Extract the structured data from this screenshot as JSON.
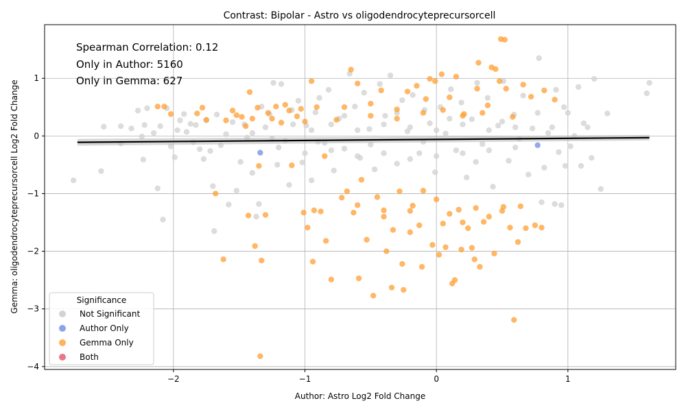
{
  "chart_data": {
    "type": "scatter",
    "title": "Contrast: Bipolar - Astro vs oligodendrocyteprecursorcell",
    "xlabel": "Author: Astro Log2 Fold Change",
    "ylabel": "Gemma: oligodendrocyteprecursorcell Log2 Fold Change",
    "xlim": [
      -2.98,
      1.82
    ],
    "ylim": [
      -4.05,
      1.93
    ],
    "x_ticks": [
      -2,
      -1,
      0,
      1
    ],
    "x_tick_labels": [
      "−2",
      "−1",
      "0",
      "1"
    ],
    "y_ticks": [
      -4,
      -3,
      -2,
      -1,
      0,
      1
    ],
    "y_tick_labels": [
      "−4",
      "−3",
      "−2",
      "−1",
      "0",
      "1"
    ],
    "grid": true,
    "annotations": [
      "Spearman Correlation: 0.12",
      "Only in Author: 5160",
      "Only in Gemma: 627"
    ],
    "legend": {
      "title": "Significance",
      "placement": "lower-left",
      "entries": [
        {
          "label": "Not Significant",
          "color": "#d3d3d3"
        },
        {
          "label": "Author Only",
          "color": "#6b8de3"
        },
        {
          "label": "Gemma Only",
          "color": "#ff9f33"
        },
        {
          "label": "Both",
          "color": "#e0566a"
        }
      ]
    },
    "regression_line": {
      "x": [
        -2.73,
        1.62
      ],
      "y": [
        -0.11,
        -0.03
      ],
      "color": "#000000"
    },
    "series": [
      {
        "name": "Not Significant",
        "color": "#d3d3d3",
        "points": [
          [
            -2.76,
            -0.77
          ],
          [
            -2.55,
            -0.61
          ],
          [
            -2.53,
            0.16
          ],
          [
            -2.4,
            0.17
          ],
          [
            -2.4,
            -0.13
          ],
          [
            -2.32,
            0.13
          ],
          [
            -2.27,
            0.44
          ],
          [
            -2.24,
            -0.01
          ],
          [
            -2.23,
            -0.41
          ],
          [
            -2.22,
            0.19
          ],
          [
            -2.2,
            0.48
          ],
          [
            -2.15,
            0.05
          ],
          [
            -2.12,
            -0.91
          ],
          [
            -2.1,
            0.17
          ],
          [
            -2.08,
            -1.45
          ],
          [
            -2.05,
            0.48
          ],
          [
            -2.02,
            -0.18
          ],
          [
            -1.99,
            -0.37
          ],
          [
            -1.97,
            0.1
          ],
          [
            -1.95,
            0.27
          ],
          [
            -1.92,
            0.38
          ],
          [
            -1.9,
            0.07
          ],
          [
            -1.87,
            0.21
          ],
          [
            -1.85,
            -0.11
          ],
          [
            -1.83,
            0.19
          ],
          [
            -1.8,
            -0.23
          ],
          [
            -1.77,
            -0.4
          ],
          [
            -1.75,
            0.27
          ],
          [
            -1.72,
            -0.26
          ],
          [
            -1.7,
            -0.87
          ],
          [
            -1.69,
            -1.65
          ],
          [
            -1.67,
            0.37
          ],
          [
            -1.64,
            -0.16
          ],
          [
            -1.6,
            0.03
          ],
          [
            -1.58,
            -1.19
          ],
          [
            -1.55,
            0.24
          ],
          [
            -1.52,
            -0.95
          ],
          [
            -1.49,
            -0.45
          ],
          [
            -1.46,
            0.2
          ],
          [
            -1.44,
            -0.03
          ],
          [
            -1.4,
            -0.64
          ],
          [
            -1.37,
            -1.4
          ],
          [
            -1.35,
            -1.18
          ],
          [
            -1.33,
            0.51
          ],
          [
            -1.3,
            0.15
          ],
          [
            -1.27,
            0.38
          ],
          [
            -1.24,
            0.92
          ],
          [
            -1.21,
            -0.5
          ],
          [
            -1.18,
            0.9
          ],
          [
            -1.15,
            -0.08
          ],
          [
            -1.12,
            -0.85
          ],
          [
            -1.09,
            0.2
          ],
          [
            -1.05,
            0.61
          ],
          [
            -1.02,
            -0.46
          ],
          [
            -0.99,
            0.18
          ],
          [
            -0.95,
            -0.77
          ],
          [
            -0.92,
            0.41
          ],
          [
            -0.89,
            0.66
          ],
          [
            -0.85,
            -0.12
          ],
          [
            -0.82,
            0.8
          ],
          [
            -0.78,
            -0.6
          ],
          [
            -0.74,
            0.3
          ],
          [
            -0.7,
            -0.22
          ],
          [
            -0.66,
            1.08
          ],
          [
            -0.62,
            0.51
          ],
          [
            -0.58,
            -0.38
          ],
          [
            -0.55,
            0.75
          ],
          [
            -0.51,
            0.12
          ],
          [
            -0.47,
            -0.58
          ],
          [
            -0.43,
            0.9
          ],
          [
            -0.39,
            0.35
          ],
          [
            -0.35,
            1.05
          ],
          [
            -0.3,
            -0.48
          ],
          [
            -0.26,
            0.62
          ],
          [
            -0.22,
            0.08
          ],
          [
            -0.18,
            0.71
          ],
          [
            -0.13,
            -0.3
          ],
          [
            -0.09,
            0.45
          ],
          [
            -0.05,
            0.22
          ],
          [
            -0.01,
            -0.63
          ],
          [
            0.03,
            0.5
          ],
          [
            0.07,
            0.04
          ],
          [
            0.11,
            0.81
          ],
          [
            0.15,
            -0.25
          ],
          [
            0.19,
            0.58
          ],
          [
            0.23,
            -0.72
          ],
          [
            0.27,
            0.29
          ],
          [
            0.31,
            0.92
          ],
          [
            0.35,
            -0.14
          ],
          [
            0.39,
            0.66
          ],
          [
            0.43,
            -0.88
          ],
          [
            0.47,
            0.18
          ],
          [
            0.51,
            0.95
          ],
          [
            0.55,
            -0.43
          ],
          [
            0.59,
            0.37
          ],
          [
            0.63,
            -0.05
          ],
          [
            0.66,
            0.7
          ],
          [
            0.7,
            -0.67
          ],
          [
            0.73,
            0.13
          ],
          [
            0.77,
            0.4
          ],
          [
            0.78,
            1.35
          ],
          [
            0.8,
            -1.15
          ],
          [
            0.82,
            -0.55
          ],
          [
            0.85,
            0.05
          ],
          [
            0.88,
            0.15
          ],
          [
            0.9,
            -1.18
          ],
          [
            0.91,
            0.8
          ],
          [
            0.93,
            -0.28
          ],
          [
            0.95,
            -1.2
          ],
          [
            0.97,
            0.5
          ],
          [
            0.98,
            -0.52
          ],
          [
            1.0,
            0.4
          ],
          [
            1.02,
            -0.18
          ],
          [
            1.05,
            0.0
          ],
          [
            1.08,
            0.85
          ],
          [
            1.1,
            -0.52
          ],
          [
            1.12,
            0.22
          ],
          [
            1.15,
            0.15
          ],
          [
            1.18,
            -0.38
          ],
          [
            1.2,
            0.99
          ],
          [
            1.25,
            -0.92
          ],
          [
            1.3,
            0.39
          ],
          [
            1.6,
            0.74
          ],
          [
            1.62,
            0.92
          ],
          [
            -1.1,
            0.45
          ],
          [
            -0.95,
            0.1
          ],
          [
            -0.8,
            0.2
          ],
          [
            -0.6,
            0.1
          ],
          [
            -0.4,
            0.2
          ],
          [
            -0.2,
            0.15
          ],
          [
            0.0,
            0.1
          ],
          [
            0.2,
            0.2
          ],
          [
            0.4,
            0.1
          ],
          [
            0.6,
            0.15
          ],
          [
            -1.2,
            -0.2
          ],
          [
            -1.0,
            -0.3
          ],
          [
            -0.8,
            -0.25
          ],
          [
            -0.6,
            -0.35
          ],
          [
            -0.4,
            -0.3
          ],
          [
            -0.2,
            -0.4
          ],
          [
            0.0,
            -0.35
          ],
          [
            0.2,
            -0.3
          ],
          [
            0.4,
            -0.25
          ],
          [
            0.6,
            -0.2
          ],
          [
            -1.4,
            0.05
          ],
          [
            -1.25,
            -0.05
          ],
          [
            -0.9,
            -0.1
          ],
          [
            -0.7,
            0.35
          ],
          [
            -0.5,
            -0.15
          ],
          [
            -0.3,
            0.4
          ],
          [
            -0.1,
            -0.1
          ],
          [
            0.1,
            0.3
          ],
          [
            0.3,
            -0.45
          ],
          [
            0.5,
            0.25
          ]
        ]
      },
      {
        "name": "Author Only",
        "color": "#6b8de3",
        "points": [
          [
            -1.34,
            -0.29
          ],
          [
            0.77,
            -0.16
          ]
        ]
      },
      {
        "name": "Gemma Only",
        "color": "#ff9f33",
        "points": [
          [
            -2.12,
            0.51
          ],
          [
            -2.07,
            0.51
          ],
          [
            -2.02,
            0.38
          ],
          [
            -1.82,
            0.39
          ],
          [
            -1.78,
            0.49
          ],
          [
            -1.75,
            0.28
          ],
          [
            -1.68,
            -1.0
          ],
          [
            -1.62,
            -2.14
          ],
          [
            -1.55,
            0.44
          ],
          [
            -1.52,
            0.36
          ],
          [
            -1.48,
            0.33
          ],
          [
            -1.45,
            0.17
          ],
          [
            -1.43,
            -1.38
          ],
          [
            -1.42,
            0.76
          ],
          [
            -1.38,
            -1.91
          ],
          [
            -1.36,
            0.49
          ],
          [
            -1.35,
            -0.52
          ],
          [
            -1.34,
            -3.82
          ],
          [
            -1.33,
            -2.16
          ],
          [
            -1.3,
            -1.37
          ],
          [
            -1.28,
            0.4
          ],
          [
            -1.25,
            0.3
          ],
          [
            -1.22,
            0.51
          ],
          [
            -1.18,
            0.23
          ],
          [
            -1.15,
            0.54
          ],
          [
            -1.12,
            0.44
          ],
          [
            -1.1,
            -0.51
          ],
          [
            -1.06,
            0.34
          ],
          [
            -1.03,
            0.47
          ],
          [
            -1.01,
            -1.33
          ],
          [
            -0.98,
            -1.59
          ],
          [
            -0.95,
            0.95
          ],
          [
            -0.94,
            -2.18
          ],
          [
            -0.93,
            -1.29
          ],
          [
            -0.91,
            0.5
          ],
          [
            -0.88,
            -1.31
          ],
          [
            -0.85,
            -0.35
          ],
          [
            -0.84,
            -1.82
          ],
          [
            -0.8,
            -2.49
          ],
          [
            -0.76,
            0.28
          ],
          [
            -0.72,
            -1.07
          ],
          [
            -0.68,
            -0.96
          ],
          [
            -0.65,
            1.15
          ],
          [
            -0.63,
            -1.33
          ],
          [
            -0.6,
            0.91
          ],
          [
            -0.59,
            -2.47
          ],
          [
            -0.57,
            -0.76
          ],
          [
            -0.53,
            -1.8
          ],
          [
            -0.5,
            0.56
          ],
          [
            -0.48,
            -2.77
          ],
          [
            -0.45,
            -1.06
          ],
          [
            -0.42,
            0.79
          ],
          [
            -0.4,
            -1.29
          ],
          [
            -0.38,
            -2.0
          ],
          [
            -0.34,
            -2.63
          ],
          [
            -0.33,
            -1.63
          ],
          [
            -0.3,
            0.46
          ],
          [
            -0.28,
            -0.96
          ],
          [
            -0.26,
            -2.22
          ],
          [
            -0.25,
            -2.67
          ],
          [
            -0.22,
            0.77
          ],
          [
            -0.2,
            -1.67
          ],
          [
            -0.18,
            -1.21
          ],
          [
            -0.15,
            0.87
          ],
          [
            -0.13,
            -1.55
          ],
          [
            -0.11,
            -2.27
          ],
          [
            -0.08,
            0.64
          ],
          [
            -0.05,
            0.99
          ],
          [
            -0.03,
            -1.89
          ],
          [
            -0.01,
            0.95
          ],
          [
            0.02,
            -2.06
          ],
          [
            0.04,
            1.07
          ],
          [
            0.05,
            -1.52
          ],
          [
            0.07,
            -1.93
          ],
          [
            0.1,
            0.67
          ],
          [
            0.12,
            -2.56
          ],
          [
            0.14,
            -2.5
          ],
          [
            0.15,
            1.03
          ],
          [
            0.17,
            -1.28
          ],
          [
            0.19,
            -1.97
          ],
          [
            0.21,
            0.38
          ],
          [
            0.24,
            -1.6
          ],
          [
            0.27,
            -1.94
          ],
          [
            0.29,
            -2.14
          ],
          [
            0.31,
            0.82
          ],
          [
            0.32,
            1.27
          ],
          [
            0.33,
            -2.27
          ],
          [
            0.36,
            -1.49
          ],
          [
            0.39,
            0.53
          ],
          [
            0.42,
            1.19
          ],
          [
            0.44,
            -2.04
          ],
          [
            0.45,
            1.16
          ],
          [
            0.48,
            0.95
          ],
          [
            0.49,
            1.68
          ],
          [
            0.51,
            -1.23
          ],
          [
            0.52,
            1.67
          ],
          [
            0.53,
            0.82
          ],
          [
            0.56,
            -1.59
          ],
          [
            0.58,
            0.33
          ],
          [
            0.59,
            -3.19
          ],
          [
            0.62,
            -1.84
          ],
          [
            0.64,
            -1.22
          ],
          [
            0.66,
            0.89
          ],
          [
            0.68,
            -1.6
          ],
          [
            0.72,
            0.68
          ],
          [
            0.75,
            -1.55
          ],
          [
            0.8,
            -1.59
          ],
          [
            0.82,
            0.79
          ],
          [
            0.9,
            0.63
          ],
          [
            -1.6,
            0.27
          ],
          [
            -1.4,
            0.3
          ],
          [
            -1.0,
            0.25
          ],
          [
            -0.7,
            0.5
          ],
          [
            -0.5,
            0.35
          ],
          [
            -0.3,
            0.3
          ],
          [
            -0.1,
            0.4
          ],
          [
            0.05,
            0.45
          ],
          [
            0.2,
            0.35
          ],
          [
            0.35,
            0.4
          ],
          [
            -0.6,
            -1.2
          ],
          [
            -0.4,
            -1.4
          ],
          [
            -0.2,
            -1.3
          ],
          [
            0.0,
            -1.1
          ],
          [
            0.1,
            -1.35
          ],
          [
            0.2,
            -1.5
          ],
          [
            0.3,
            -1.25
          ],
          [
            0.4,
            -1.4
          ],
          [
            0.5,
            -1.3
          ],
          [
            -0.1,
            -0.95
          ]
        ]
      },
      {
        "name": "Both",
        "color": "#e0566a",
        "points": []
      }
    ]
  }
}
